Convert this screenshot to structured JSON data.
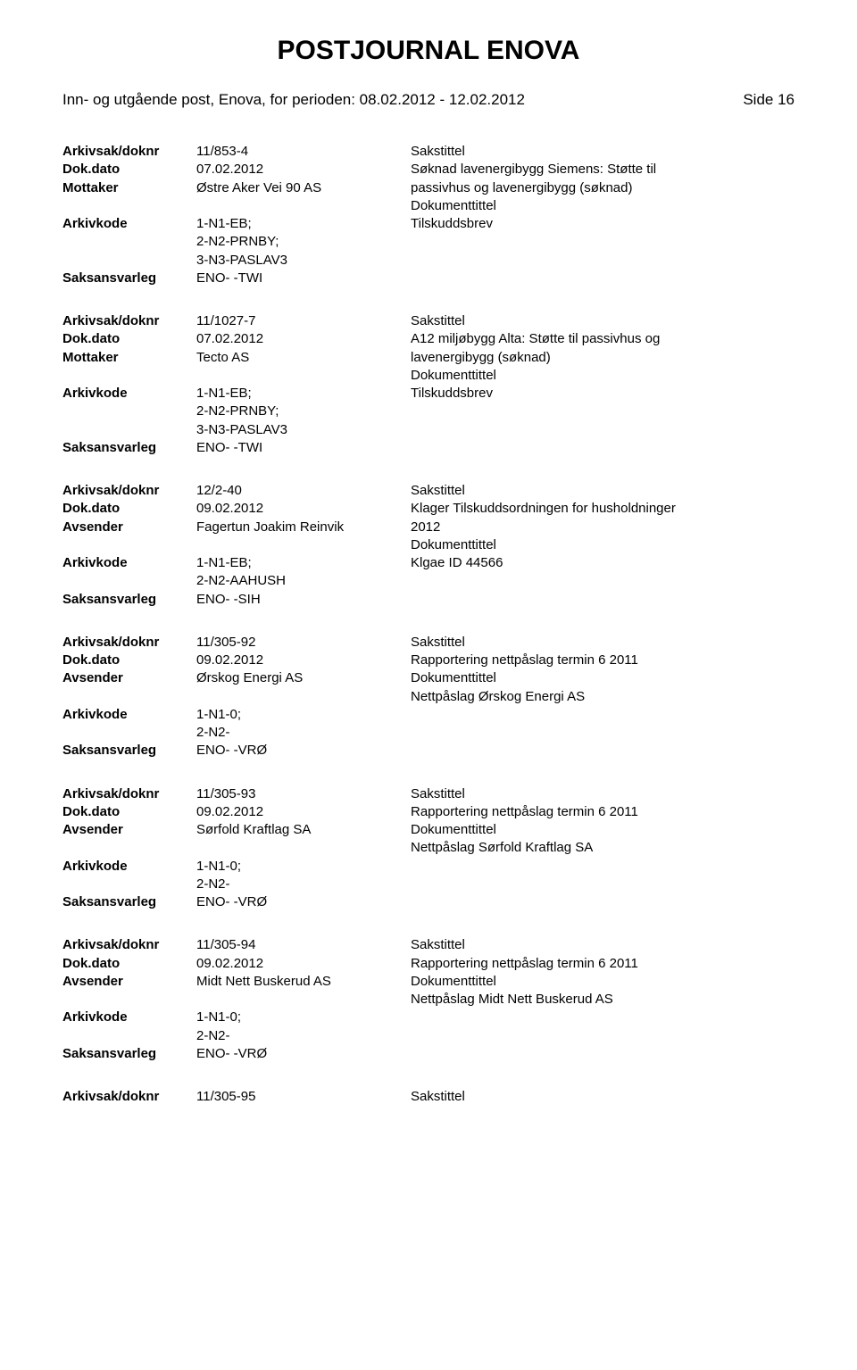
{
  "page_title": "POSTJOURNAL ENOVA",
  "header_left": "Inn- og utgående post, Enova, for perioden: 08.02.2012 - 12.02.2012",
  "header_right": "Side 16",
  "labels": {
    "arkivsak": "Arkivsak/doknr",
    "dokdato": "Dok.dato",
    "mottaker": "Mottaker",
    "avsender": "Avsender",
    "arkivkode": "Arkivkode",
    "saksansvarleg": "Saksansvarleg",
    "sakstittel": "Sakstittel",
    "dokumenttittel": "Dokumenttittel"
  },
  "entries": [
    {
      "arkivsak": "11/853-4",
      "dokdato": "07.02.2012",
      "party_label": "Mottaker",
      "party_value": "Østre Aker Vei 90 AS",
      "arkivkode_lines": [
        "1-N1-EB;",
        "2-N2-PRNBY;",
        "3-N3-PASLAV3"
      ],
      "saksansvarleg": "ENO- -TWI",
      "sakstittel_lines": [
        "Søknad lavenergibygg Siemens: Støtte til",
        "passivhus og lavenergibygg (søknad)"
      ],
      "dokumenttittel_lines": [
        "Tilskuddsbrev"
      ]
    },
    {
      "arkivsak": "11/1027-7",
      "dokdato": "07.02.2012",
      "party_label": "Mottaker",
      "party_value": "Tecto AS",
      "arkivkode_lines": [
        "1-N1-EB;",
        "2-N2-PRNBY;",
        "3-N3-PASLAV3"
      ],
      "saksansvarleg": "ENO- -TWI",
      "sakstittel_lines": [
        "A12 miljøbygg Alta: Støtte til passivhus og",
        "lavenergibygg (søknad)"
      ],
      "dokumenttittel_lines": [
        "Tilskuddsbrev"
      ]
    },
    {
      "arkivsak": "12/2-40",
      "dokdato": "09.02.2012",
      "party_label": "Avsender",
      "party_value": "Fagertun Joakim Reinvik",
      "arkivkode_lines": [
        "1-N1-EB;",
        "2-N2-AAHUSH"
      ],
      "saksansvarleg": "ENO- -SIH",
      "sakstittel_lines": [
        "Klager Tilskuddsordningen for husholdninger",
        "2012"
      ],
      "dokumenttittel_lines": [
        "Klgae ID 44566"
      ]
    },
    {
      "arkivsak": "11/305-92",
      "dokdato": "09.02.2012",
      "party_label": "Avsender",
      "party_value": "Ørskog Energi AS",
      "arkivkode_lines": [
        "1-N1-0;",
        "2-N2-"
      ],
      "saksansvarleg": "ENO- -VRØ",
      "sakstittel_lines": [
        "Rapportering nettpåslag termin 6 2011"
      ],
      "dokumenttittel_lines": [
        "Nettpåslag Ørskog Energi AS"
      ]
    },
    {
      "arkivsak": "11/305-93",
      "dokdato": "09.02.2012",
      "party_label": "Avsender",
      "party_value": "Sørfold Kraftlag SA",
      "arkivkode_lines": [
        "1-N1-0;",
        "2-N2-"
      ],
      "saksansvarleg": "ENO- -VRØ",
      "sakstittel_lines": [
        "Rapportering nettpåslag termin 6 2011"
      ],
      "dokumenttittel_lines": [
        "Nettpåslag Sørfold Kraftlag SA"
      ]
    },
    {
      "arkivsak": "11/305-94",
      "dokdato": "09.02.2012",
      "party_label": "Avsender",
      "party_value": "Midt Nett Buskerud AS",
      "arkivkode_lines": [
        "1-N1-0;",
        "2-N2-"
      ],
      "saksansvarleg": "ENO- -VRØ",
      "sakstittel_lines": [
        "Rapportering nettpåslag termin 6 2011"
      ],
      "dokumenttittel_lines": [
        "Nettpåslag Midt Nett Buskerud AS"
      ]
    }
  ],
  "trailing": {
    "arkivsak": "11/305-95"
  }
}
